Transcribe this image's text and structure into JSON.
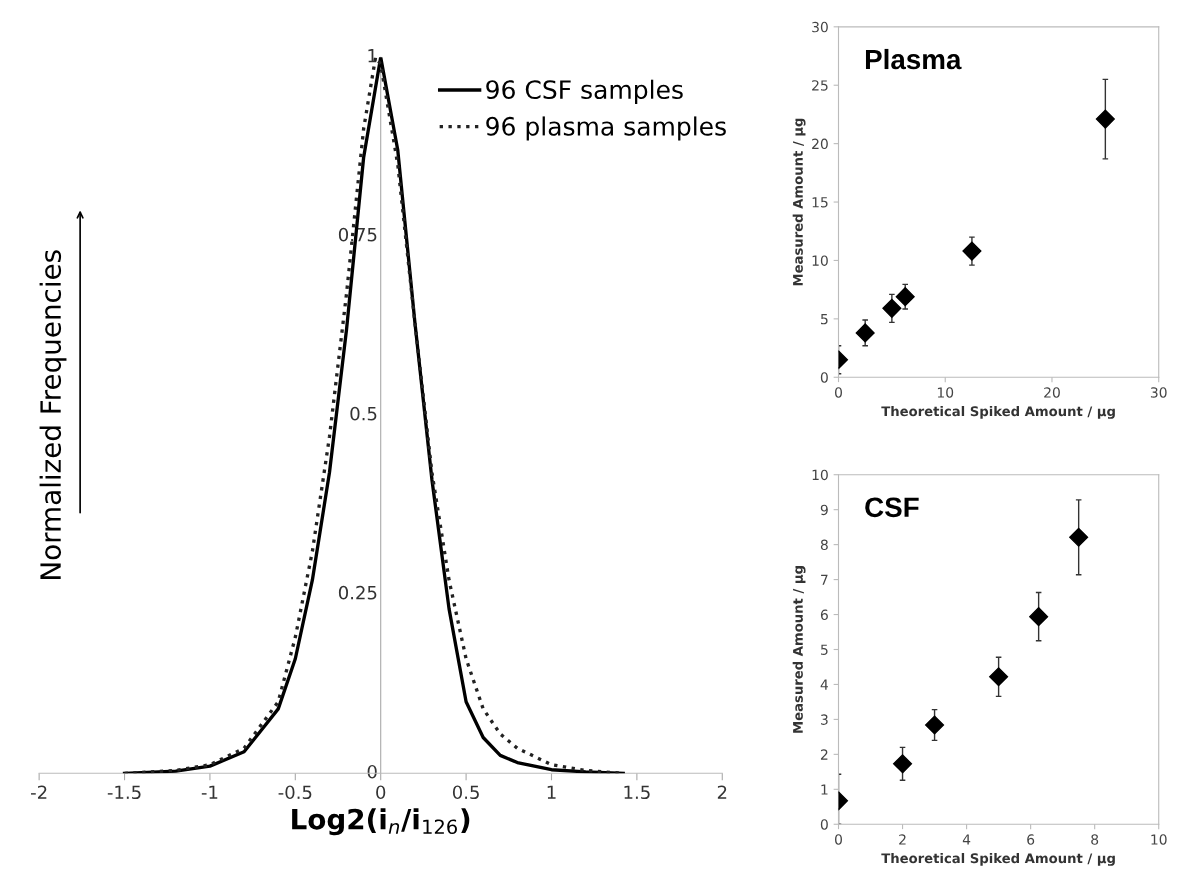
{
  "chart_data": [
    {
      "type": "line",
      "xlabel": "Log2(i$_{n}$/i$_{126}$)",
      "ylabel": "Normalized Frequencies",
      "series": [
        {
          "name": "96 CSF samples",
          "color": "#000000",
          "line_style": "solid",
          "x": [
            -1.5,
            -1.2,
            -1.0,
            -0.8,
            -0.6,
            -0.5,
            -0.4,
            -0.3,
            -0.2,
            -0.1,
            0,
            0.1,
            0.2,
            0.3,
            0.4,
            0.5,
            0.6,
            0.7,
            0.8,
            1.0,
            1.2,
            1.42
          ],
          "values": [
            0,
            0.003,
            0.01,
            0.03,
            0.09,
            0.16,
            0.27,
            0.42,
            0.62,
            0.86,
            1,
            0.87,
            0.63,
            0.41,
            0.23,
            0.1,
            0.05,
            0.025,
            0.015,
            0.005,
            0.002,
            0
          ]
        },
        {
          "name": "96 plasma samples",
          "color": "#222222",
          "line_style": "dotted",
          "x": [
            -1.5,
            -1.2,
            -1.0,
            -0.8,
            -0.6,
            -0.5,
            -0.4,
            -0.3,
            -0.2,
            -0.1,
            -0.03,
            0,
            0.1,
            0.2,
            0.3,
            0.4,
            0.5,
            0.6,
            0.7,
            0.8,
            1.0,
            1.2,
            1.42
          ],
          "values": [
            0,
            0.004,
            0.012,
            0.035,
            0.1,
            0.19,
            0.31,
            0.47,
            0.67,
            0.9,
            1,
            0.99,
            0.85,
            0.63,
            0.42,
            0.27,
            0.16,
            0.09,
            0.055,
            0.035,
            0.012,
            0.004,
            0
          ]
        }
      ],
      "xlim": [
        -2,
        2
      ],
      "ylim": [
        0,
        1
      ],
      "xticks": [
        -2,
        -1.5,
        -1,
        -0.5,
        0,
        0.5,
        1,
        1.5,
        2
      ],
      "yticks": [
        0,
        0.25,
        0.5,
        0.75,
        1
      ],
      "legend": "top right",
      "grid": false
    },
    {
      "type": "scatter",
      "title": "Plasma",
      "xlabel": "Theoretical Spiked Amount / µg",
      "ylabel": "Measured Amount / µg",
      "x": [
        0,
        2.5,
        5,
        6.25,
        12.5,
        25
      ],
      "values": [
        1.5,
        3.8,
        5.9,
        6.9,
        10.8,
        22.1
      ],
      "errors": [
        1.2,
        1.1,
        1.2,
        1.05,
        1.2,
        3.4
      ],
      "color": "#000000",
      "marker": "diamond",
      "xlim": [
        0,
        30
      ],
      "ylim": [
        0,
        30
      ],
      "xticks": [
        0,
        10,
        20,
        30
      ],
      "yticks": [
        0,
        5,
        10,
        15,
        20,
        25,
        30
      ],
      "grid": false
    },
    {
      "type": "scatter",
      "title": "CSF",
      "xlabel": "Theoretical Spiked Amount / µg",
      "ylabel": "Measured Amount / µg",
      "x": [
        0,
        2,
        3,
        5,
        6.25,
        7.5
      ],
      "values": [
        0.67,
        1.73,
        2.84,
        4.22,
        5.94,
        8.21
      ],
      "errors": [
        [
          0,
          1.43
        ],
        0.47,
        0.44,
        0.56,
        0.69,
        1.07
      ],
      "color": "#000000",
      "marker": "diamond",
      "xlim": [
        0,
        10
      ],
      "ylim": [
        0,
        10
      ],
      "xticks": [
        0,
        2,
        4,
        6,
        8,
        10
      ],
      "yticks": [
        0,
        1,
        2,
        3,
        4,
        5,
        6,
        7,
        8,
        9,
        10
      ],
      "grid": false
    }
  ]
}
